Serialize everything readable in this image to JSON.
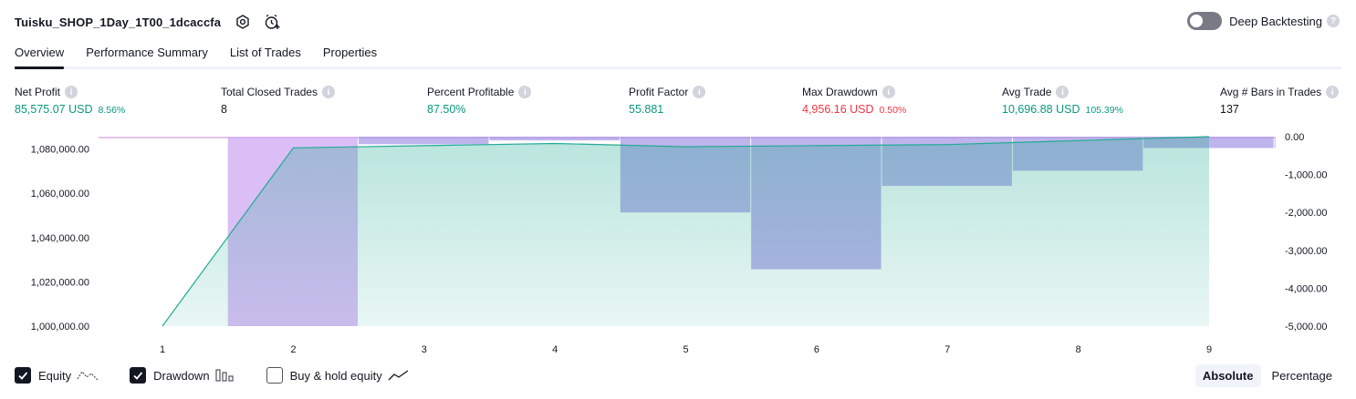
{
  "header": {
    "title": "Tuisku_SHOP_1Day_1T00_1dcaccfa",
    "deep_backtesting_label": "Deep Backtesting",
    "help_glyph": "?"
  },
  "tabs": [
    {
      "label": "Overview",
      "active": true
    },
    {
      "label": "Performance Summary",
      "active": false
    },
    {
      "label": "List of Trades",
      "active": false
    },
    {
      "label": "Properties",
      "active": false
    }
  ],
  "metrics": [
    {
      "label": "Net Profit",
      "value": "85,575.07 USD",
      "pct": "8.56%",
      "tone": "pos"
    },
    {
      "label": "Total Closed Trades",
      "value": "8",
      "pct": "",
      "tone": "neutral"
    },
    {
      "label": "Percent Profitable",
      "value": "87.50%",
      "pct": "",
      "tone": "pos"
    },
    {
      "label": "Profit Factor",
      "value": "55.881",
      "pct": "",
      "tone": "pos"
    },
    {
      "label": "Max Drawdown",
      "value": "4,956.16 USD",
      "pct": "0.50%",
      "tone": "neg"
    },
    {
      "label": "Avg Trade",
      "value": "10,696.88 USD",
      "pct": "105.39%",
      "tone": "pos"
    },
    {
      "label": "Avg # Bars in Trades",
      "value": "137",
      "pct": "",
      "tone": "neutral"
    }
  ],
  "legend": {
    "equity_label": "Equity",
    "drawdown_label": "Drawdown",
    "buy_hold_label": "Buy & hold equity"
  },
  "mode": {
    "absolute_label": "Absolute",
    "percentage_label": "Percentage",
    "selected": "Absolute"
  },
  "colors": {
    "equity_line": "#22ab94",
    "equity_fill": "#22ab94",
    "drawdown_bar": "#b39ddb",
    "drawdown_top": "#e1bee7",
    "positive": "#089981",
    "negative": "#f23645"
  },
  "chart_data": {
    "type": "line",
    "x": [
      1,
      2,
      3,
      4,
      5,
      6,
      7,
      8,
      9
    ],
    "x_tick_labels": [
      "1",
      "2",
      "3",
      "4",
      "5",
      "6",
      "7",
      "8",
      "9"
    ],
    "series": [
      {
        "axis": "left",
        "values": [
          1000000,
          1080500,
          1081500,
          1082500,
          1081000,
          1081500,
          1082000,
          1083800,
          1085575
        ]
      },
      {
        "axis": "right",
        "type": "bar",
        "values": [
          0,
          -5000,
          -200,
          -100,
          -2000,
          -3500,
          -1300,
          -900,
          -300
        ]
      }
    ],
    "left_ticks": [
      "1,000,000.00",
      "1,020,000.00",
      "1,040,000.00",
      "1,060,000.00",
      "1,080,000.00"
    ],
    "left_tick_values": [
      1000000,
      1020000,
      1040000,
      1060000,
      1080000
    ],
    "right_ticks": [
      "0.00",
      "-1,000.00",
      "-2,000.00",
      "-3,000.00",
      "-4,000.00",
      "-5,000.00"
    ],
    "right_tick_values": [
      0,
      -1000,
      -2000,
      -3000,
      -4000,
      -5000
    ],
    "left_ylim": [
      1000000,
      1085575
    ],
    "right_ylim": [
      -5000,
      0
    ],
    "grid": false
  }
}
